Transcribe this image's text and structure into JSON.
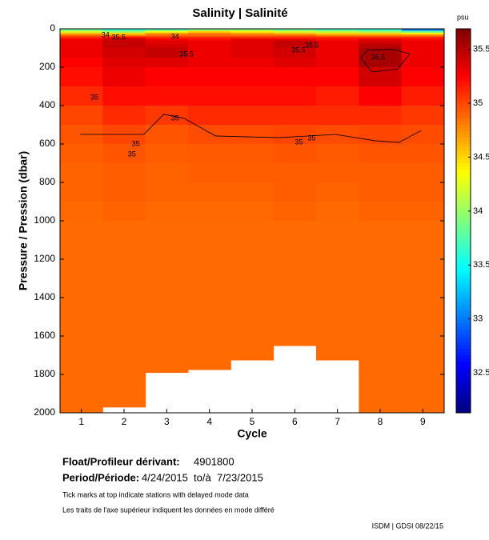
{
  "chart_data": {
    "type": "heatmap",
    "title": "Salinity | Salinité",
    "colorbar_label": "psu",
    "x_label": "Cycle",
    "y_label": "Pressure / Pression (dbar)",
    "x": [
      1,
      2,
      3,
      4,
      5,
      6,
      7,
      8,
      9
    ],
    "y_edges": [
      0,
      10,
      20,
      30,
      40,
      50,
      60,
      80,
      100,
      150,
      200,
      300,
      400,
      500,
      600,
      700,
      800,
      900,
      1000,
      1650,
      1725,
      1775,
      1790,
      1970,
      2000
    ],
    "values": [
      [
        33.8,
        33.6,
        33.7,
        33.9,
        33.9,
        33.8,
        33.7,
        33.6,
        33.0
      ],
      [
        34.2,
        34.0,
        34.3,
        34.5,
        34.4,
        34.2,
        34.1,
        34.0,
        33.8
      ],
      [
        34.6,
        34.5,
        34.7,
        34.8,
        34.7,
        34.6,
        34.5,
        34.5,
        34.4
      ],
      [
        34.9,
        34.8,
        34.9,
        34.9,
        34.9,
        34.9,
        34.8,
        34.8,
        34.8
      ],
      [
        35.1,
        35.2,
        35.1,
        35.1,
        35.1,
        35.1,
        35.1,
        35.1,
        35.1
      ],
      [
        35.25,
        35.4,
        35.25,
        35.2,
        35.3,
        35.3,
        35.2,
        35.3,
        35.2
      ],
      [
        35.3,
        35.45,
        35.35,
        35.3,
        35.35,
        35.45,
        35.3,
        35.4,
        35.3
      ],
      [
        35.3,
        35.45,
        35.4,
        35.3,
        35.35,
        35.45,
        35.3,
        35.5,
        35.3
      ],
      [
        35.3,
        35.4,
        35.45,
        35.3,
        35.35,
        35.4,
        35.3,
        35.55,
        35.3
      ],
      [
        35.25,
        35.35,
        35.35,
        35.3,
        35.3,
        35.35,
        35.3,
        35.55,
        35.3
      ],
      [
        35.2,
        35.3,
        35.25,
        35.25,
        35.25,
        35.25,
        35.25,
        35.4,
        35.25
      ],
      [
        35.1,
        35.2,
        35.2,
        35.2,
        35.2,
        35.2,
        35.15,
        35.25,
        35.15
      ],
      [
        35.0,
        35.1,
        35.05,
        35.1,
        35.1,
        35.1,
        35.1,
        35.1,
        35.05
      ],
      [
        34.95,
        35.0,
        34.95,
        34.98,
        34.98,
        35.0,
        34.98,
        35.0,
        34.98
      ],
      [
        34.92,
        34.95,
        34.92,
        34.93,
        34.93,
        34.95,
        34.93,
        34.95,
        34.95
      ],
      [
        34.9,
        34.92,
        34.9,
        34.92,
        34.92,
        34.92,
        34.92,
        34.92,
        34.92
      ],
      [
        34.9,
        34.92,
        34.9,
        34.9,
        34.9,
        34.92,
        34.9,
        34.92,
        34.92
      ],
      [
        34.88,
        34.9,
        34.88,
        34.88,
        34.88,
        34.9,
        34.88,
        34.9,
        34.9
      ],
      [
        34.87,
        34.87,
        34.87,
        34.87,
        34.87,
        34.87,
        34.87,
        34.87,
        34.87
      ],
      [
        34.87,
        34.87,
        34.87,
        34.87,
        34.87,
        null,
        34.87,
        34.87,
        34.87
      ],
      [
        34.87,
        34.87,
        34.87,
        34.87,
        null,
        null,
        null,
        34.87,
        34.87
      ],
      [
        34.87,
        34.87,
        34.87,
        null,
        null,
        null,
        null,
        34.87,
        34.87
      ],
      [
        34.87,
        34.87,
        null,
        null,
        null,
        null,
        null,
        34.87,
        34.87
      ],
      [
        34.87,
        null,
        null,
        null,
        null,
        null,
        null,
        34.87,
        34.87
      ]
    ],
    "xlim": [
      0.5,
      9.5
    ],
    "xticks": [
      1,
      2,
      3,
      4,
      5,
      6,
      7,
      8,
      9
    ],
    "ylim": [
      0,
      2000
    ],
    "y_reversed": true,
    "yticks": [
      0,
      200,
      400,
      600,
      800,
      1000,
      1200,
      1400,
      1600,
      1800,
      2000
    ],
    "clim": [
      32.13,
      35.69
    ],
    "cticks": [
      32.5,
      33,
      33.5,
      34,
      34.5,
      35,
      35.5
    ],
    "colormap": "jet",
    "contours": [
      {
        "x": [
          0.97,
          2.46,
          2.93,
          3.4,
          4.14,
          5.64,
          6.95,
          7.88,
          8.44,
          8.96
        ],
        "y": [
          550,
          550,
          445,
          465,
          558,
          567,
          550,
          583,
          592,
          530
        ]
      },
      {
        "x": [
          7.55,
          7.7,
          8.3,
          8.7,
          8.4,
          7.8,
          7.55
        ],
        "y": [
          150,
          110,
          108,
          130,
          210,
          225,
          150
        ]
      }
    ],
    "annotations": [
      {
        "text": "35",
        "x": 1.21,
        "y": 358
      },
      {
        "text": "35",
        "x": 3.1,
        "y": 467
      },
      {
        "text": "35",
        "x": 2.18,
        "y": 600
      },
      {
        "text": "35",
        "x": 2.09,
        "y": 654
      },
      {
        "text": "35",
        "x": 6.0,
        "y": 592
      },
      {
        "text": "35",
        "x": 6.3,
        "y": 571
      },
      {
        "text": "35.5",
        "x": 3.3,
        "y": 133
      },
      {
        "text": "35.5",
        "x": 5.92,
        "y": 112
      },
      {
        "text": "35.5",
        "x": 6.24,
        "y": 88
      },
      {
        "text": "35.5",
        "x": 7.79,
        "y": 150
      },
      {
        "text": "35.5",
        "x": 1.71,
        "y": 46
      },
      {
        "text": "34",
        "x": 3.1,
        "y": 42
      },
      {
        "text": "34",
        "x": 1.47,
        "y": 33
      }
    ]
  },
  "info": {
    "float_label": "Float/Profileur dérivant:",
    "float_id": "4901800",
    "period_label": "Period/Période:",
    "period": "4/24/2015  to/à  7/23/2015",
    "note_en": "Tick marks at top indicate stations with delayed mode data",
    "note_fr": "Les traits de l'axe supérieur indiquent les données en mode différé",
    "footer": "ISDM | GDSI 08/22/15"
  }
}
